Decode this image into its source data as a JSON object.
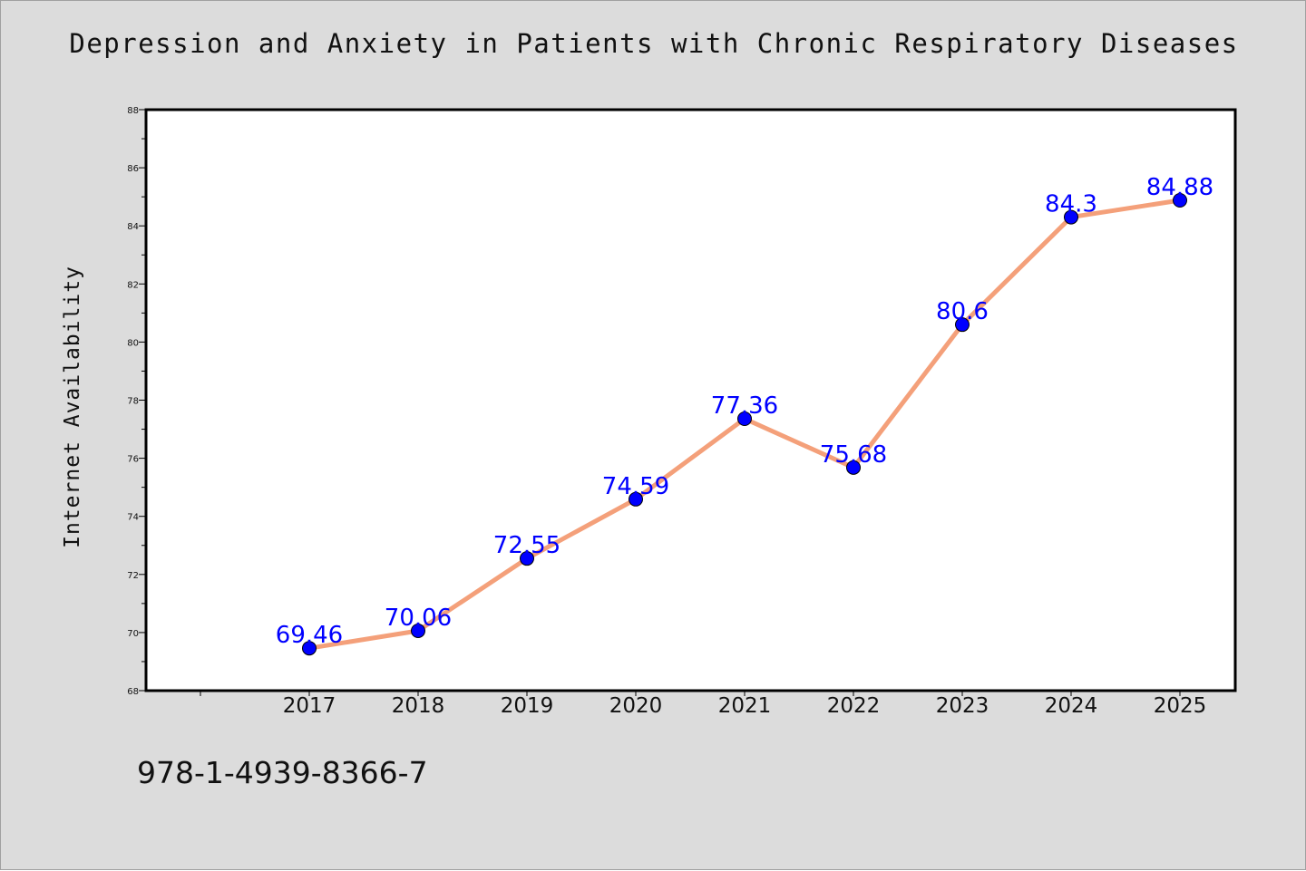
{
  "chart_data": {
    "type": "line",
    "title": "Depression and Anxiety in Patients with Chronic Respiratory Diseases",
    "xlabel": "",
    "ylabel": "Internet Availability",
    "categories": [
      "2017",
      "2018",
      "2019",
      "2020",
      "2021",
      "2022",
      "2023",
      "2024",
      "2025"
    ],
    "values": [
      69.46,
      70.06,
      72.55,
      74.59,
      77.36,
      75.68,
      80.6,
      84.3,
      84.88
    ],
    "data_labels": [
      "69.46",
      "70.06",
      "72.55",
      "74.59",
      "77.36",
      "75.68",
      "80.6",
      "84.3",
      "84.88"
    ],
    "ylim": [
      68,
      88
    ],
    "yticks": [
      "68",
      "70",
      "72",
      "74",
      "76",
      "78",
      "80",
      "82",
      "84",
      "86",
      "88"
    ],
    "grid": false,
    "legend": "none",
    "line_color": "#f4a07a",
    "marker_color": "#0000ff",
    "label_color": "#0000ff"
  },
  "footer": {
    "code": "978-1-4939-8366-7"
  }
}
